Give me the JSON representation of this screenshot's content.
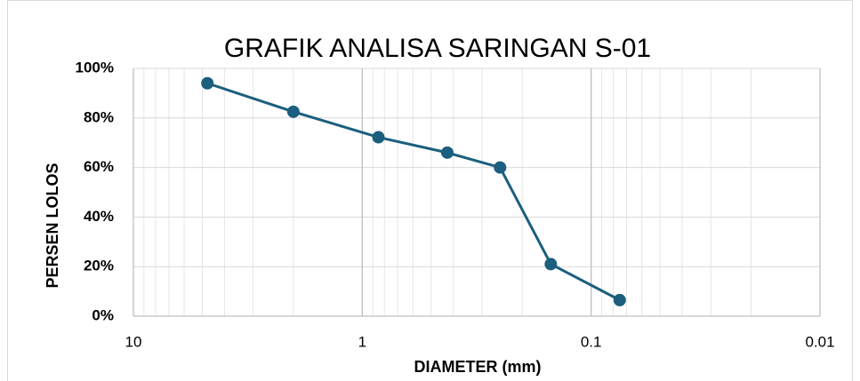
{
  "chart_data": {
    "type": "line",
    "title": "GRAFIK ANALISA SARINGAN S-01",
    "x_label": "DIAMETER (mm)",
    "y_label": "PERSEN LOLOS",
    "x": [
      4.75,
      2,
      0.85,
      0.425,
      0.25,
      0.15,
      0.075
    ],
    "series": [
      {
        "name": "S-01",
        "color": "#1b5e7e",
        "values": [
          94,
          82.5,
          72.2,
          66,
          60,
          21,
          6.5
        ]
      }
    ],
    "xlim": [
      10,
      0.01
    ],
    "xticks": [
      10,
      1,
      0.1,
      0.01
    ],
    "log_x": true,
    "minor_grid": true,
    "ylim": [
      0,
      100
    ],
    "yticks": [
      {
        "value": 0,
        "label": "0%"
      },
      {
        "value": 20,
        "label": "20%"
      },
      {
        "value": 40,
        "label": "40%"
      },
      {
        "value": 60,
        "label": "60%"
      },
      {
        "value": 80,
        "label": "80%"
      },
      {
        "value": 100,
        "label": "100%"
      }
    ],
    "grid": true
  }
}
